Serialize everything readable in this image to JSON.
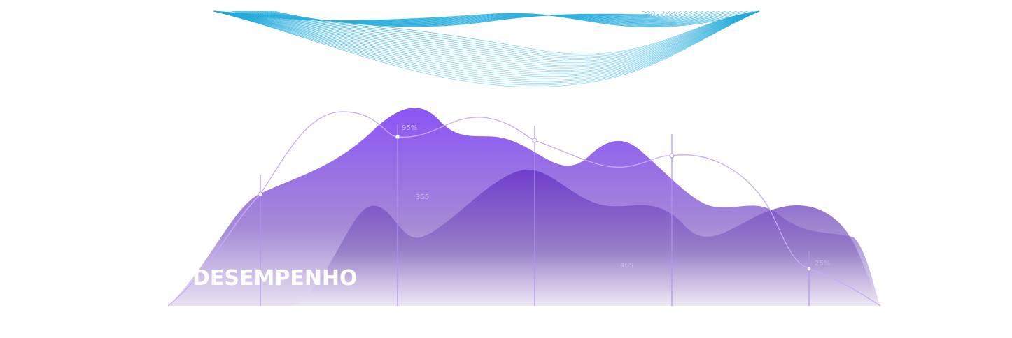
{
  "title": "DESEMPENHO",
  "labels": [
    "95%",
    "355",
    "465",
    "25%"
  ]
}
